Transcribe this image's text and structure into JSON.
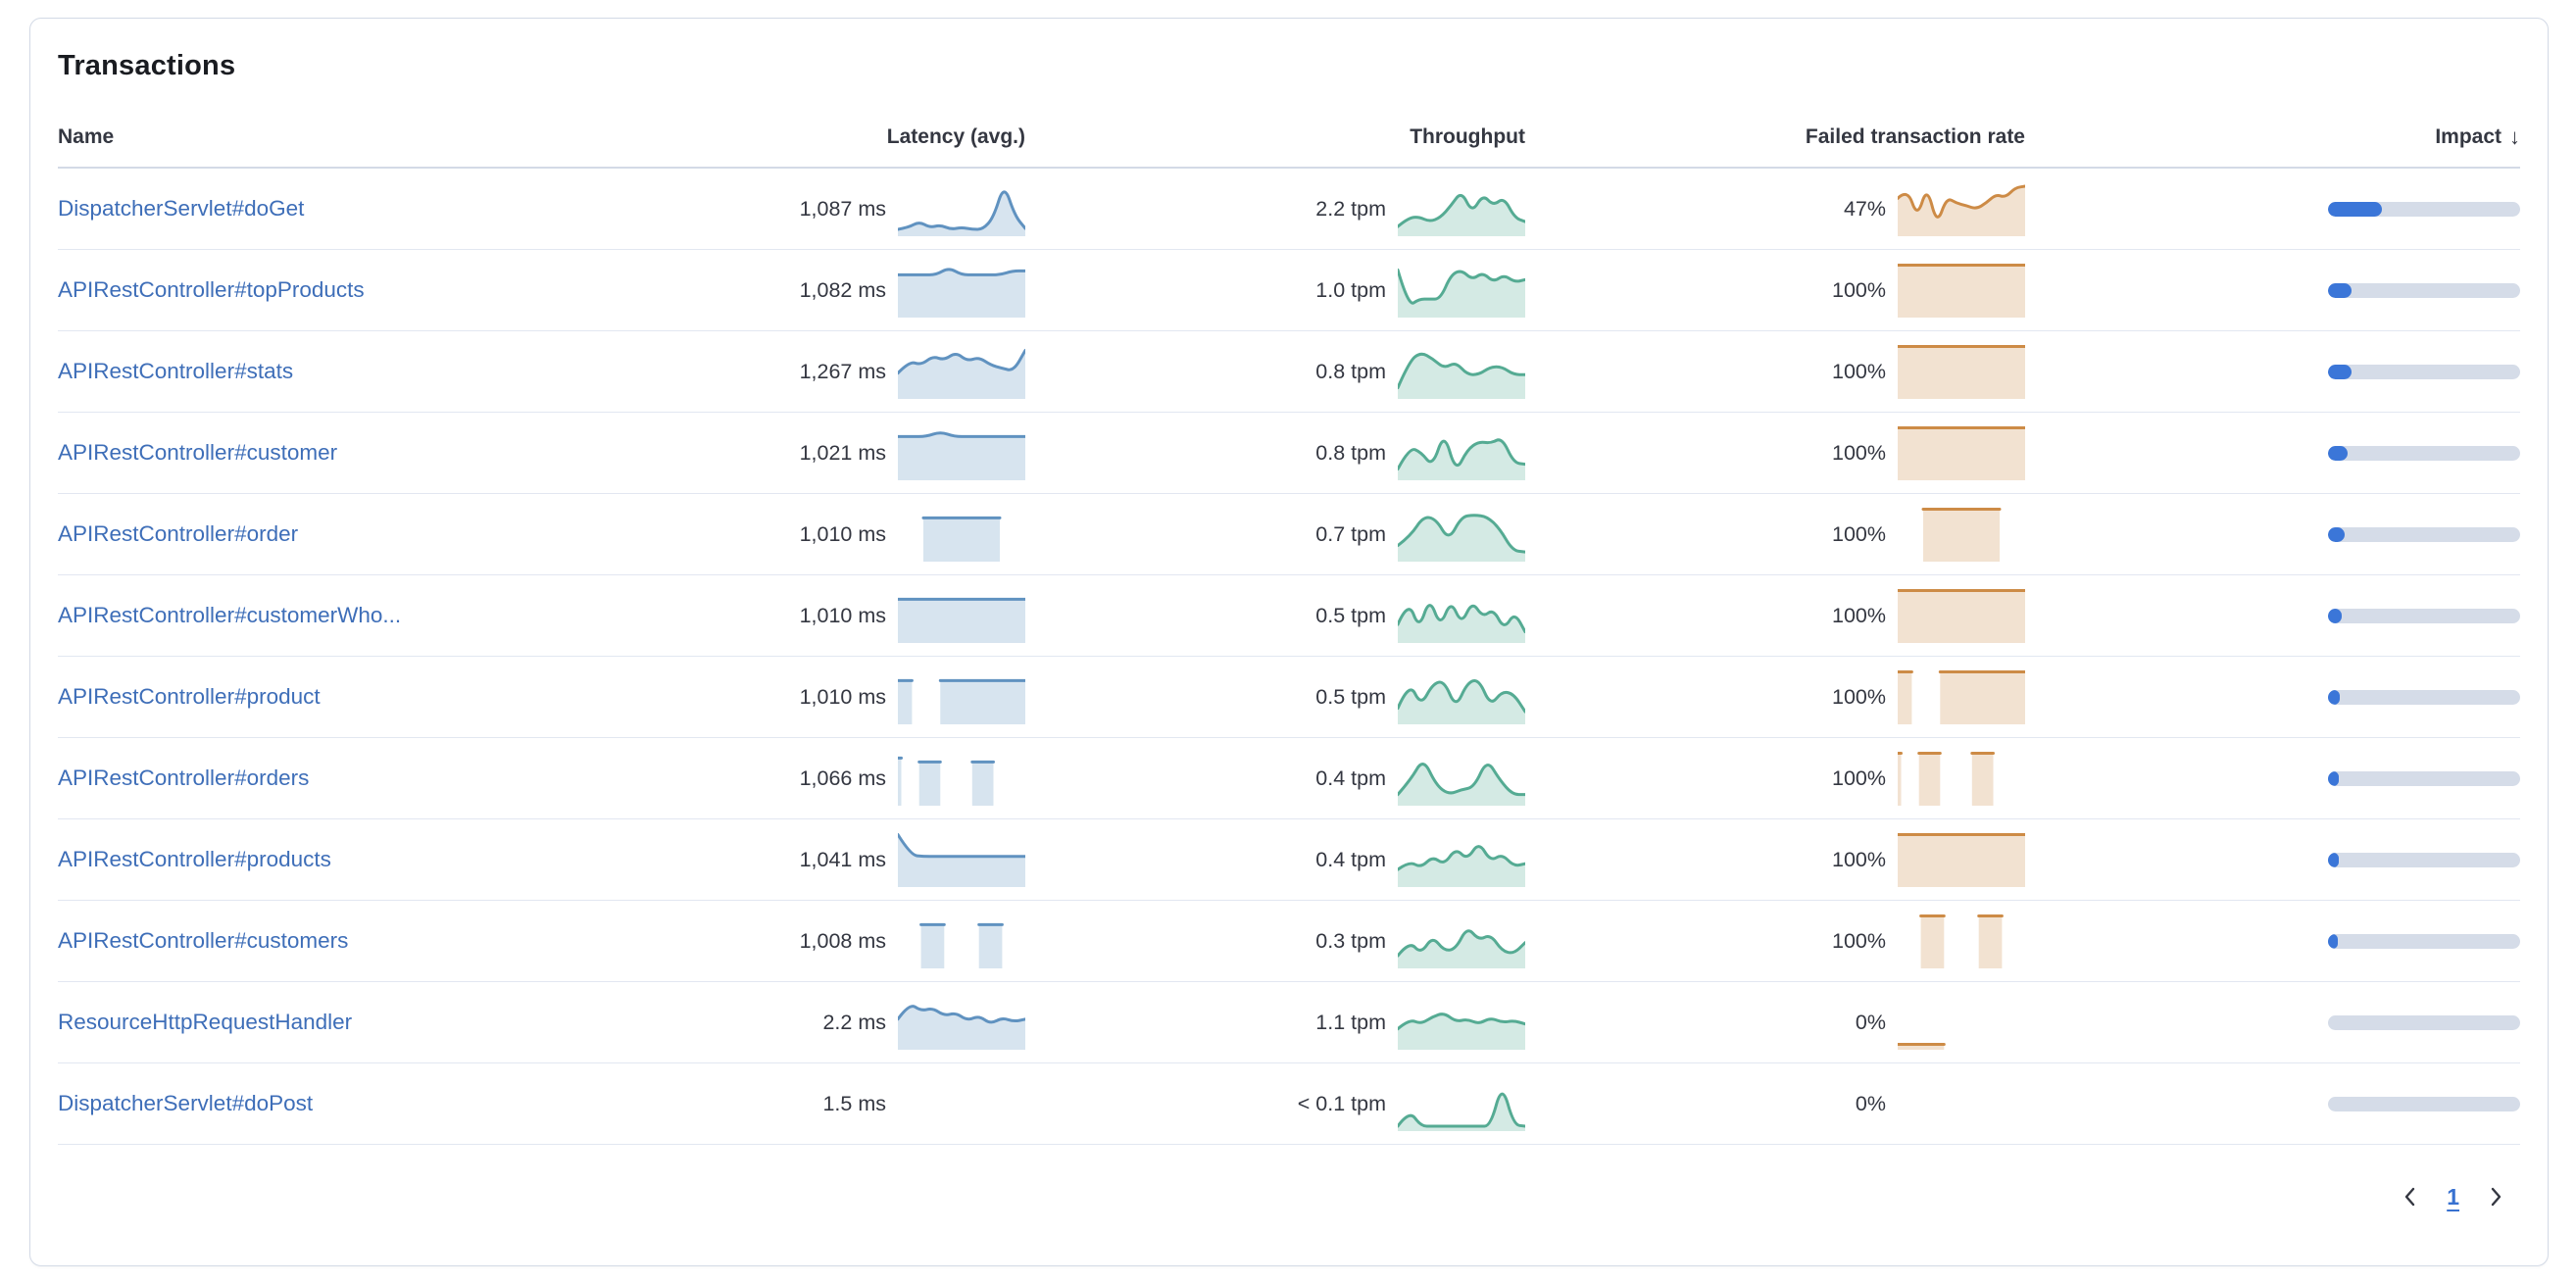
{
  "card": {
    "title": "Transactions"
  },
  "table": {
    "columns": {
      "name": "Name",
      "latency": "Latency (avg.)",
      "throughput": "Throughput",
      "failed": "Failed transaction rate",
      "impact": "Impact"
    },
    "sort": {
      "column": "impact",
      "direction": "descending",
      "icon": "↓"
    },
    "rows": [
      {
        "name": "DispatcherServlet#doGet",
        "latency": "1,087 ms",
        "throughput": "2.2 tpm",
        "failed": "47%",
        "impact": 0.28,
        "latency_spark": [
          0.06,
          0.1,
          0.22,
          0.1,
          0.15,
          0.06,
          0.1,
          0.06,
          0.06,
          0.3,
          1.0,
          0.35,
          0.08
        ],
        "throughput_spark": [
          0.12,
          0.3,
          0.32,
          0.22,
          0.3,
          0.55,
          0.85,
          0.4,
          0.78,
          0.55,
          0.72,
          0.3,
          0.22
        ],
        "failed_spark": [
          0.7,
          0.9,
          0.3,
          0.95,
          0.15,
          0.72,
          0.6,
          0.55,
          0.48,
          0.6,
          0.78,
          0.72,
          0.92,
          0.95
        ]
      },
      {
        "name": "APIRestController#topProducts",
        "latency": "1,082 ms",
        "throughput": "1.0 tpm",
        "failed": "100%",
        "impact": 0.12,
        "latency_spark": [
          0.8,
          0.8,
          0.8,
          0.8,
          0.95,
          0.8,
          0.8,
          0.8,
          0.8,
          0.88,
          0.88
        ],
        "throughput_spark": [
          0.9,
          0.15,
          0.3,
          0.3,
          0.3,
          0.8,
          0.9,
          0.7,
          0.85,
          0.65,
          0.8,
          0.65,
          0.7
        ],
        "failed_spark": [
          1,
          1,
          1,
          1,
          1,
          1,
          1,
          1,
          1,
          1,
          1
        ]
      },
      {
        "name": "APIRestController#stats",
        "latency": "1,267 ms",
        "throughput": "0.8 tpm",
        "failed": "100%",
        "impact": 0.12,
        "latency_spark": [
          0.45,
          0.7,
          0.62,
          0.8,
          0.72,
          0.88,
          0.7,
          0.78,
          0.62,
          0.55,
          0.5,
          0.92
        ],
        "throughput_spark": [
          0.15,
          0.7,
          0.88,
          0.75,
          0.55,
          0.68,
          0.42,
          0.42,
          0.58,
          0.58,
          0.42,
          0.42
        ],
        "failed_spark": [
          1,
          1,
          1,
          1,
          1,
          1,
          1,
          1,
          1,
          1,
          1
        ]
      },
      {
        "name": "APIRestController#customer",
        "latency": "1,021 ms",
        "throughput": "0.8 tpm",
        "failed": "100%",
        "impact": 0.1,
        "latency_spark": [
          0.82,
          0.82,
          0.82,
          0.92,
          0.82,
          0.82,
          0.82,
          0.82,
          0.82,
          0.82
        ],
        "throughput_spark": [
          0.15,
          0.6,
          0.5,
          0.2,
          0.92,
          0.08,
          0.55,
          0.72,
          0.68,
          0.8,
          0.28,
          0.25
        ],
        "failed_spark": [
          1,
          1,
          1,
          1,
          1,
          1,
          1,
          1,
          1,
          1,
          1
        ]
      },
      {
        "name": "APIRestController#order",
        "latency": "1,010 ms",
        "throughput": "0.7 tpm",
        "failed": "100%",
        "impact": 0.085,
        "latency_spark": [
          null,
          null,
          0.82,
          0.82,
          0.82,
          0.82,
          0.82,
          0.82,
          0.82,
          null,
          null
        ],
        "throughput_spark": [
          0.25,
          0.45,
          0.85,
          0.8,
          0.35,
          0.85,
          0.88,
          0.85,
          0.6,
          0.15,
          0.12
        ],
        "failed_spark": [
          null,
          null,
          1,
          1,
          1,
          1,
          1,
          1,
          1,
          null,
          null
        ]
      },
      {
        "name": "APIRestController#customerWho...",
        "latency": "1,010 ms",
        "throughput": "0.5 tpm",
        "failed": "100%",
        "impact": 0.07,
        "latency_spark": [
          0.82,
          0.82,
          0.82,
          0.82,
          0.82,
          0.82,
          0.82,
          0.82,
          0.82,
          0.82,
          0.82
        ],
        "throughput_spark": [
          0.3,
          0.8,
          0.2,
          0.85,
          0.25,
          0.8,
          0.3,
          0.78,
          0.45,
          0.62,
          0.2,
          0.55,
          0.15
        ],
        "failed_spark": [
          1,
          1,
          1,
          1,
          1,
          1,
          1,
          1,
          1,
          1,
          1
        ]
      },
      {
        "name": "APIRestController#product",
        "latency": "1,010 ms",
        "throughput": "0.5 tpm",
        "failed": "100%",
        "impact": 0.06,
        "latency_spark": [
          0.82,
          0.82,
          null,
          0.82,
          0.82,
          0.82,
          0.82,
          0.82,
          0.82,
          0.82
        ],
        "throughput_spark": [
          0.25,
          0.8,
          0.3,
          0.75,
          0.82,
          0.25,
          0.78,
          0.85,
          0.3,
          0.6,
          0.55,
          0.18
        ],
        "failed_spark": [
          1,
          1,
          null,
          1,
          1,
          1,
          1,
          1,
          1,
          1
        ]
      },
      {
        "name": "APIRestController#orders",
        "latency": "1,066 ms",
        "throughput": "0.4 tpm",
        "failed": "100%",
        "impact": 0.055,
        "latency_spark": [
          0.9,
          null,
          0.82,
          0.82,
          0.82,
          null,
          null,
          0.82,
          0.82,
          0.82,
          null,
          null,
          null
        ],
        "throughput_spark": [
          0.15,
          0.45,
          0.9,
          0.35,
          0.15,
          0.25,
          0.3,
          0.88,
          0.45,
          0.15,
          0.15
        ],
        "failed_spark": [
          1,
          null,
          1,
          1,
          1,
          null,
          null,
          1,
          1,
          1,
          null,
          null,
          null
        ]
      },
      {
        "name": "APIRestController#products",
        "latency": "1,041 ms",
        "throughput": "0.4 tpm",
        "failed": "100%",
        "impact": 0.055,
        "latency_spark": [
          1.0,
          0.58,
          0.55,
          0.55,
          0.55,
          0.55,
          0.55,
          0.55,
          0.55,
          0.55,
          0.55
        ],
        "throughput_spark": [
          0.28,
          0.45,
          0.32,
          0.55,
          0.38,
          0.72,
          0.48,
          0.85,
          0.45,
          0.6,
          0.35,
          0.4
        ],
        "failed_spark": [
          1,
          1,
          1,
          1,
          1,
          1,
          1,
          1,
          1,
          1,
          1
        ]
      },
      {
        "name": "APIRestController#customers",
        "latency": "1,008 ms",
        "throughput": "0.3 tpm",
        "failed": "100%",
        "impact": 0.05,
        "latency_spark": [
          null,
          null,
          0.82,
          0.82,
          0.82,
          null,
          null,
          0.82,
          0.82,
          0.82,
          null,
          null
        ],
        "throughput_spark": [
          0.18,
          0.48,
          0.22,
          0.58,
          0.28,
          0.32,
          0.78,
          0.5,
          0.62,
          0.28,
          0.22,
          0.45
        ],
        "failed_spark": [
          null,
          null,
          1,
          1,
          1,
          null,
          null,
          1,
          1,
          1,
          null,
          null
        ]
      },
      {
        "name": "ResourceHttpRequestHandler",
        "latency": "2.2 ms",
        "throughput": "1.1 tpm",
        "failed": "0%",
        "impact": 0,
        "latency_spark": [
          0.55,
          0.88,
          0.72,
          0.78,
          0.62,
          0.68,
          0.52,
          0.62,
          0.45,
          0.58,
          0.5,
          0.55
        ],
        "throughput_spark": [
          0.35,
          0.55,
          0.45,
          0.6,
          0.68,
          0.5,
          0.55,
          0.45,
          0.58,
          0.48,
          0.52,
          0.45
        ],
        "failed_spark": [
          0.03,
          0.03,
          0.03,
          0.03,
          0.03,
          null,
          null,
          null,
          null,
          null,
          null,
          null
        ]
      },
      {
        "name": "DispatcherServlet#doPost",
        "latency": "1.5 ms",
        "throughput": "< 0.1 tpm",
        "failed": "0%",
        "impact": 0,
        "latency_spark": null,
        "throughput_spark": [
          0.02,
          0.35,
          0.02,
          0.02,
          0.02,
          0.02,
          0.02,
          0.02,
          0.02,
          0.9,
          0.05,
          0.02
        ],
        "failed_spark": null
      }
    ]
  },
  "pagination": {
    "page": "1",
    "prev_icon": "chevron-left",
    "next_icon": "chevron-right"
  },
  "colors": {
    "latency": "#6092c0",
    "throughput": "#55ab93",
    "failed": "#cd8b46",
    "impact_fill": "#3b76d8",
    "impact_track": "#d5dce8",
    "link": "#3e6eb8"
  }
}
